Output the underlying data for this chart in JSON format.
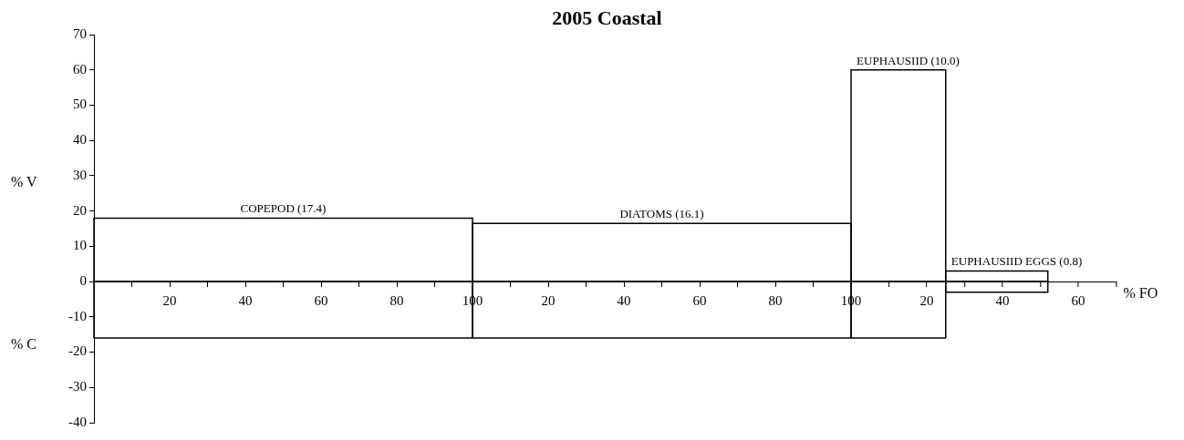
{
  "chart_data": [
    {
      "type": "histogram",
      "ylabel": "% V",
      "bins": [
        0,
        100
      ],
      "series": [
        {
          "color": "#000000",
          "values": [
            18
          ]
        },
        {
          "color": "#000000",
          "values": [
            -16
          ]
        }
      ],
      "xlim": [
        0,
        100
      ],
      "xticks": [
        {
          "value": 10,
          "label": null
        },
        20,
        {
          "value": 30,
          "label": null
        },
        40,
        {
          "value": 50,
          "label": null
        },
        60,
        {
          "value": 70,
          "label": null
        },
        80,
        {
          "value": 90,
          "label": null
        },
        100
      ],
      "ylim": [
        -40,
        70
      ],
      "yticks": [
        -40,
        -30,
        -20,
        -10,
        0,
        10,
        20,
        30,
        40,
        50,
        60,
        70
      ],
      "annotations": [
        "COPEPOD (17.4)",
        "% C"
      ]
    },
    {
      "type": "histogram",
      "title": "2005 Coastal",
      "bins": [
        0,
        100
      ],
      "series": [
        {
          "color": "#000000",
          "values": [
            16.5
          ]
        },
        {
          "color": "#000000",
          "values": [
            -16
          ]
        }
      ],
      "xlim": [
        0,
        100
      ],
      "xticks": [
        {
          "value": 0,
          "label": null
        },
        {
          "value": 10,
          "label": null
        },
        20,
        {
          "value": 30,
          "label": null
        },
        40,
        {
          "value": 50,
          "label": null
        },
        60,
        {
          "value": 70,
          "label": null
        },
        80,
        {
          "value": 90,
          "label": null
        },
        100
      ],
      "ylim": [
        -40,
        70
      ],
      "tick_labels": "x",
      "annotations": [
        "DIATOMS (16.1)"
      ]
    },
    {
      "type": "histogram",
      "xlabel": "% FO",
      "bins": [
        0,
        25,
        52
      ],
      "series": [
        {
          "color": "#000000",
          "values": [
            60,
            3
          ]
        },
        {
          "color": "#000000",
          "values": [
            -16,
            -3
          ]
        }
      ],
      "xlim": [
        0,
        70
      ],
      "xticks": [
        {
          "value": 0,
          "label": null
        },
        {
          "value": 10,
          "label": null
        },
        20,
        {
          "value": 30,
          "label": null
        },
        40,
        {
          "value": 50,
          "label": null
        },
        60,
        {
          "value": 70,
          "label": null
        }
      ],
      "ylim": [
        -40,
        70
      ],
      "tick_labels": "x",
      "annotations": [
        "EUPHAUSIID (10.0)",
        "EUPHAUSIID EGGS (0.8)"
      ]
    }
  ]
}
